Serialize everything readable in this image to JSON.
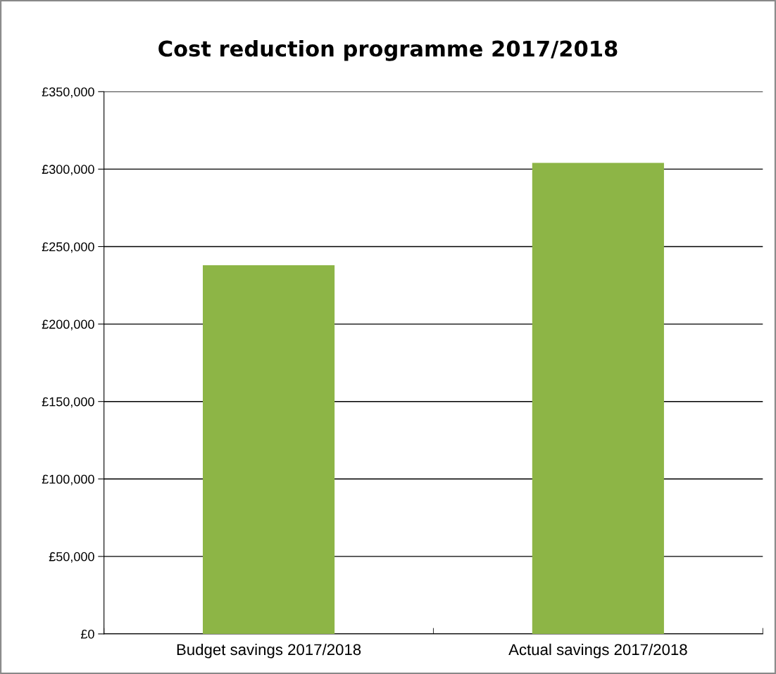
{
  "chart_data": {
    "type": "bar",
    "title": "Cost reduction programme 2017/2018",
    "categories": [
      "Budget savings 2017/2018",
      "Actual savings 2017/2018"
    ],
    "values": [
      238000,
      304000
    ],
    "color": "#8db546",
    "ylim": [
      0,
      350000
    ],
    "yticks": [
      {
        "value": 0,
        "label": "£0"
      },
      {
        "value": 50000,
        "label": "£50,000"
      },
      {
        "value": 100000,
        "label": "£100,000"
      },
      {
        "value": 150000,
        "label": "£150,000"
      },
      {
        "value": 200000,
        "label": "£200,000"
      },
      {
        "value": 250000,
        "label": "£250,000"
      },
      {
        "value": 300000,
        "label": "£300,000"
      },
      {
        "value": 350000,
        "label": "£350,000"
      }
    ],
    "grid": "y"
  }
}
